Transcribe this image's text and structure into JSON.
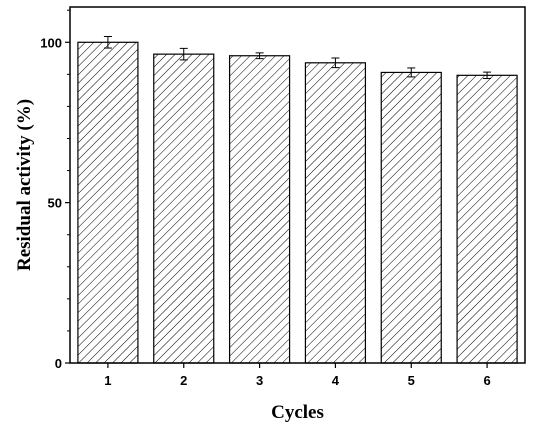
{
  "chart_data": {
    "type": "bar",
    "title": "",
    "xlabel": "Cycles",
    "ylabel": "Residual activity (%)",
    "categories": [
      "1",
      "2",
      "3",
      "4",
      "5",
      "6"
    ],
    "values": [
      100,
      96.3,
      95.8,
      93.6,
      90.6,
      89.7
    ],
    "errors": [
      1.8,
      1.8,
      0.9,
      1.5,
      1.4,
      1.0
    ],
    "ylim": [
      0,
      111
    ],
    "yticks": [
      "0",
      "50",
      "100"
    ],
    "legend": "none",
    "grid": false,
    "bar_fill": "diagonal-hatch",
    "colors": {
      "bar_edge": "#000000",
      "hatch": "#000000",
      "background": "#ffffff"
    }
  }
}
